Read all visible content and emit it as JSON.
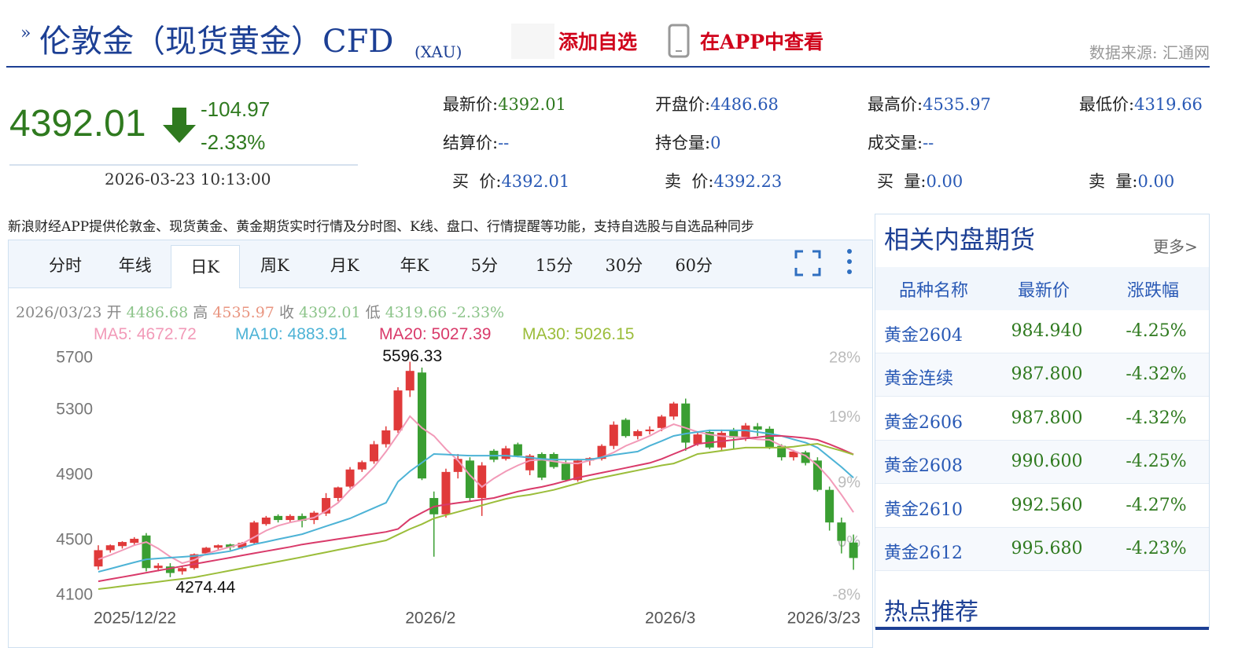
{
  "header": {
    "title": "伦敦金（现货黄金）CFD",
    "symbol": "(XAU)",
    "add": "添加自选",
    "app": "在APP中查看",
    "source": "数据来源: 汇通网"
  },
  "quote": {
    "price": "4392.01",
    "change": "-104.97",
    "change_pct": "-2.33%",
    "time": "2026-03-23 10:13:00",
    "fields": [
      {
        "label": "最新价:",
        "value": "4392.01"
      },
      {
        "label": "开盘价:",
        "value": "4486.68"
      },
      {
        "label": "最高价:",
        "value": "4535.97"
      },
      {
        "label": "最低价:",
        "value": "4319.66"
      },
      {
        "label": "结算价:",
        "value": "--"
      },
      {
        "label": "持仓量:",
        "value": "0"
      },
      {
        "label": "成交量:",
        "value": "--"
      },
      {
        "label": "买  价:",
        "value": "4392.01"
      },
      {
        "label": "卖  价:",
        "value": "4392.23"
      },
      {
        "label": "买  量:",
        "value": "0.00"
      },
      {
        "label": "卖  量:",
        "value": "0.00"
      }
    ]
  },
  "promo": "新浪财经APP提供伦敦金、现货黄金、黄金期货实时行情及分时图、K线、盘口、行情提醒等功能，支持自选股与自选品种同步",
  "tabs": [
    "分时",
    "年线",
    "日K",
    "周K",
    "月K",
    "年K",
    "5分",
    "15分",
    "30分",
    "60分"
  ],
  "side": {
    "title": "相关内盘期货",
    "more": "更多>",
    "columns": [
      "品种名称",
      "最新价",
      "涨跌幅"
    ],
    "rows": [
      [
        "黄金2604",
        "984.940",
        "-4.25%"
      ],
      [
        "黄金连续",
        "987.800",
        "-4.32%"
      ],
      [
        "黄金2606",
        "987.800",
        "-4.32%"
      ],
      [
        "黄金2608",
        "990.600",
        "-4.25%"
      ],
      [
        "黄金2610",
        "992.560",
        "-4.27%"
      ],
      [
        "黄金2612",
        "995.680",
        "-4.23%"
      ]
    ],
    "hot": "热点推荐"
  },
  "chart_data": {
    "type": "candlestick",
    "info": {
      "date": "2026/03/23",
      "items": [
        {
          "label": "开",
          "value": "4486.68",
          "color": "#8cc48a"
        },
        {
          "label": "高",
          "value": "4535.97",
          "color": "#e99580"
        },
        {
          "label": "收",
          "value": "4392.01",
          "color": "#8cc48a"
        },
        {
          "label": "低",
          "value": "4319.66",
          "color": "#8cc48a"
        }
      ],
      "change": "-2.33%"
    },
    "categories": [
      "2025/12/22",
      null,
      null,
      null,
      null,
      null,
      null,
      null,
      null,
      null,
      null,
      null,
      null,
      null,
      null,
      null,
      null,
      null,
      null,
      null,
      null,
      null,
      null,
      null,
      null,
      null,
      "2026/2",
      null,
      null,
      null,
      null,
      null,
      null,
      null,
      null,
      null,
      null,
      null,
      null,
      null,
      null,
      null,
      null,
      null,
      null,
      null,
      "2026/3",
      null,
      null,
      null,
      null,
      null,
      null,
      null,
      null,
      null,
      null,
      null,
      null,
      null,
      null,
      null,
      null,
      "2026/3/23"
    ],
    "open": [
      4340,
      4440,
      4465,
      4485,
      4530,
      4330,
      4340,
      4310,
      4330,
      4420,
      4455,
      4475,
      4455,
      4485,
      4600,
      4650,
      4625,
      4650,
      4625,
      4665,
      4760,
      4830,
      4935,
      4985,
      5090,
      5175,
      5420,
      5530,
      4760,
      4660,
      4920,
      4990,
      4760,
      5050,
      5000,
      5090,
      4930,
      5030,
      5030,
      4970,
      4870,
      4990,
      5000,
      5080,
      5240,
      5140,
      5170,
      5190,
      5260,
      5340,
      5090,
      5165,
      5070,
      5175,
      5130,
      5200,
      5185,
      5080,
      5010,
      5040,
      4990,
      4810,
      4610,
      4486.68
    ],
    "high": [
      4470,
      4475,
      4495,
      4520,
      4545,
      4360,
      4360,
      4340,
      4420,
      4460,
      4475,
      4480,
      4490,
      4620,
      4650,
      4660,
      4660,
      4665,
      4680,
      4790,
      4830,
      4950,
      4990,
      5110,
      5200,
      5440,
      5596.33,
      5560,
      4800,
      4940,
      5030,
      5010,
      4980,
      5060,
      5080,
      5100,
      5030,
      5040,
      5040,
      4990,
      5000,
      5010,
      5090,
      5230,
      5250,
      5180,
      5200,
      5270,
      5350,
      5370,
      5170,
      5180,
      5180,
      5190,
      5220,
      5220,
      5200,
      5090,
      5055,
      5050,
      5010,
      4830,
      4640,
      4535.97
    ],
    "low": [
      4320,
      4425,
      4450,
      4470,
      4310,
      4310,
      4274.44,
      4290,
      4320,
      4410,
      4440,
      4440,
      4445,
      4480,
      4590,
      4610,
      4610,
      4580,
      4600,
      4650,
      4740,
      4820,
      4920,
      4970,
      5070,
      5160,
      5380,
      4870,
      4400,
      4640,
      4880,
      4740,
      4650,
      4980,
      4990,
      5010,
      4900,
      4870,
      4940,
      4860,
      4860,
      4960,
      4990,
      5060,
      5130,
      5120,
      5150,
      5170,
      5240,
      5050,
      5080,
      5060,
      5050,
      5060,
      5110,
      5140,
      5060,
      4990,
      4990,
      4960,
      4800,
      4560,
      4420,
      4319.66
    ],
    "close": [
      4440,
      4470,
      4490,
      4510,
      4330,
      4345,
      4300,
      4330,
      4415,
      4455,
      4470,
      4458,
      4485,
      4610,
      4640,
      4625,
      4650,
      4620,
      4670,
      4760,
      4825,
      4935,
      4980,
      5090,
      5175,
      5420,
      5540,
      4880,
      4660,
      4920,
      5000,
      4760,
      4960,
      4995,
      5065,
      5020,
      5020,
      4885,
      4950,
      4870,
      4990,
      5005,
      5080,
      5210,
      5140,
      5170,
      5180,
      5260,
      5340,
      5100,
      5150,
      5070,
      5160,
      5130,
      5205,
      5180,
      5070,
      5010,
      5045,
      4975,
      4810,
      4610,
      4496.98,
      4392.01
    ],
    "up_color": "#e03a3a",
    "down_color": "#3a9e32",
    "ma": [
      {
        "name": "MA5",
        "label": "MA5: 4672.72",
        "color": "#f29ab8",
        "values": [
          4384,
          4410,
          4440,
          4470,
          4490,
          4450,
          4400,
          4360,
          4380,
          4418,
          4440,
          4460,
          4480,
          4520,
          4560,
          4590,
          4610,
          4625,
          4640,
          4680,
          4731,
          4810,
          4876,
          4950,
          5045,
          5150,
          5262,
          5190,
          5141,
          5060,
          4990,
          4900,
          4828,
          4880,
          4924,
          4960,
          4990,
          4996,
          4985,
          4975,
          4972,
          4990,
          5010,
          5040,
          5080,
          5110,
          5141,
          5180,
          5213,
          5190,
          5165,
          5150,
          5140,
          5135,
          5130,
          5120,
          5117,
          5080,
          5050,
          5020,
          4960,
          4880,
          4780,
          4672.72
        ]
      },
      {
        "name": "MA10",
        "label": "MA10: 4883.91",
        "color": "#4db3d6",
        "values": [
          4307,
          4326,
          4346,
          4365,
          4384,
          4389,
          4394,
          4399,
          4404,
          4413,
          4423,
          4434,
          4455,
          4476,
          4491,
          4507,
          4522,
          4538,
          4562,
          4587,
          4611,
          4635,
          4667,
          4699,
          4731,
          4860,
          4924,
          4977,
          5030,
          5027,
          5023,
          5020,
          5020,
          5020,
          5020,
          5015,
          5008,
          5000,
          4996,
          4996,
          4996,
          4996,
          5010,
          5025,
          5035,
          5045,
          5080,
          5110,
          5141,
          5155,
          5165,
          5175,
          5175,
          5175,
          5175,
          5165,
          5155,
          5141,
          5120,
          5100,
          5069,
          5010,
          4950,
          4883.91
        ]
      },
      {
        "name": "MA20",
        "label": "MA20: 5027.39",
        "color": "#d93a6a",
        "values": [
          4249,
          4262,
          4275,
          4288,
          4302,
          4315,
          4328,
          4342,
          4355,
          4368,
          4381,
          4394,
          4408,
          4421,
          4434,
          4447,
          4460,
          4475,
          4486,
          4497,
          4508,
          4519,
          4530,
          4541,
          4552,
          4570,
          4630,
          4670,
          4707,
          4720,
          4730,
          4740,
          4750,
          4760,
          4780,
          4800,
          4815,
          4828,
          4845,
          4865,
          4885,
          4900,
          4915,
          4930,
          4945,
          4960,
          4975,
          5000,
          5030,
          5060,
          5093,
          5100,
          5108,
          5117,
          5125,
          5133,
          5141,
          5141,
          5135,
          5128,
          5117,
          5090,
          5060,
          5027.39
        ]
      },
      {
        "name": "MA30",
        "label": "MA30: 5026.15",
        "color": "#9bbd3a",
        "values": [
          4201,
          4210,
          4219,
          4228,
          4237,
          4246,
          4255,
          4264,
          4273,
          4287,
          4301,
          4315,
          4329,
          4343,
          4356,
          4370,
          4384,
          4398,
          4413,
          4427,
          4442,
          4456,
          4471,
          4485,
          4500,
          4535,
          4570,
          4600,
          4635,
          4655,
          4675,
          4695,
          4715,
          4735,
          4755,
          4770,
          4780,
          4795,
          4810,
          4830,
          4850,
          4870,
          4885,
          4900,
          4915,
          4930,
          4945,
          4960,
          4972,
          5000,
          5030,
          5040,
          5050,
          5060,
          5069,
          5069,
          5069,
          5069,
          5075,
          5085,
          5093,
          5070,
          5050,
          5026.15
        ]
      }
    ],
    "annotations": [
      {
        "text": "5596.33",
        "value": 5596.33
      },
      {
        "text": "4274.44",
        "value": 4274.44
      }
    ],
    "ylim": [
      4100,
      5700
    ],
    "yticks": [
      4100,
      4500,
      4900,
      5300,
      5700
    ],
    "y2lim": [
      -8,
      28
    ],
    "y2ticks": [
      {
        "value": -8,
        "label": "-8%"
      },
      {
        "value": 0,
        "label": "0%"
      },
      {
        "value": 9,
        "label": "9%"
      },
      {
        "value": 19,
        "label": "19%"
      },
      {
        "value": 28,
        "label": "28%"
      }
    ]
  }
}
